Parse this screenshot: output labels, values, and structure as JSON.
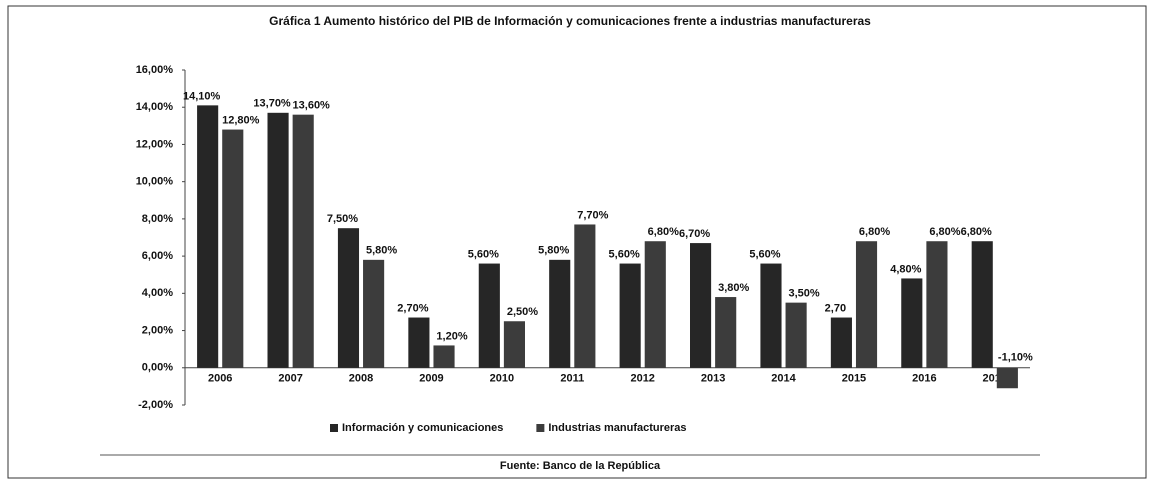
{
  "chart_data": {
    "type": "bar",
    "title": "Gráfica 1 Aumento histórico del PIB de Información y comunicaciones frente a industrias manufactureras",
    "source": "Fuente: Banco de la República",
    "categories": [
      "2006",
      "2007",
      "2008",
      "2009",
      "2010",
      "2011",
      "2012",
      "2013",
      "2014",
      "2015",
      "2016",
      "2017"
    ],
    "series": [
      {
        "name": "Información y comunicaciones",
        "color": "#262626",
        "values": [
          14.1,
          13.7,
          7.5,
          2.7,
          5.6,
          5.8,
          5.6,
          6.7,
          5.6,
          2.7,
          4.8,
          6.8
        ],
        "value_labels": [
          "14,10%",
          "13,70%",
          "7,50%",
          "2,70%",
          "5,60%",
          "5,80%",
          "5,60%",
          "6,70%",
          "5,60%",
          "2,70",
          "4,80%",
          "6,80%"
        ]
      },
      {
        "name": "Industrias manufactureras",
        "color": "#3c3c3c",
        "values": [
          12.8,
          13.6,
          5.8,
          1.2,
          2.5,
          7.7,
          6.8,
          3.8,
          3.5,
          6.8,
          6.8,
          -1.1
        ],
        "value_labels": [
          "12,80%",
          "13,60%",
          "5,80%",
          "1,20%",
          "2,50%",
          "7,70%",
          "6,80%",
          "3,80%",
          "3,50%",
          "6,80%",
          "6,80%",
          "-1,10%"
        ]
      }
    ],
    "ylim": [
      -2,
      16
    ],
    "yticks": [
      {
        "value": -2,
        "label": "-2,00%"
      },
      {
        "value": 0,
        "label": "0,00%"
      },
      {
        "value": 2,
        "label": "2,00%"
      },
      {
        "value": 4,
        "label": "4,00%"
      },
      {
        "value": 6,
        "label": "6,00%"
      },
      {
        "value": 8,
        "label": "8,00%"
      },
      {
        "value": 10,
        "label": "10,00%"
      },
      {
        "value": 12,
        "label": "12,00%"
      },
      {
        "value": 14,
        "label": "14,00%"
      },
      {
        "value": 16,
        "label": "16,00%"
      }
    ],
    "legend": "bottom"
  }
}
